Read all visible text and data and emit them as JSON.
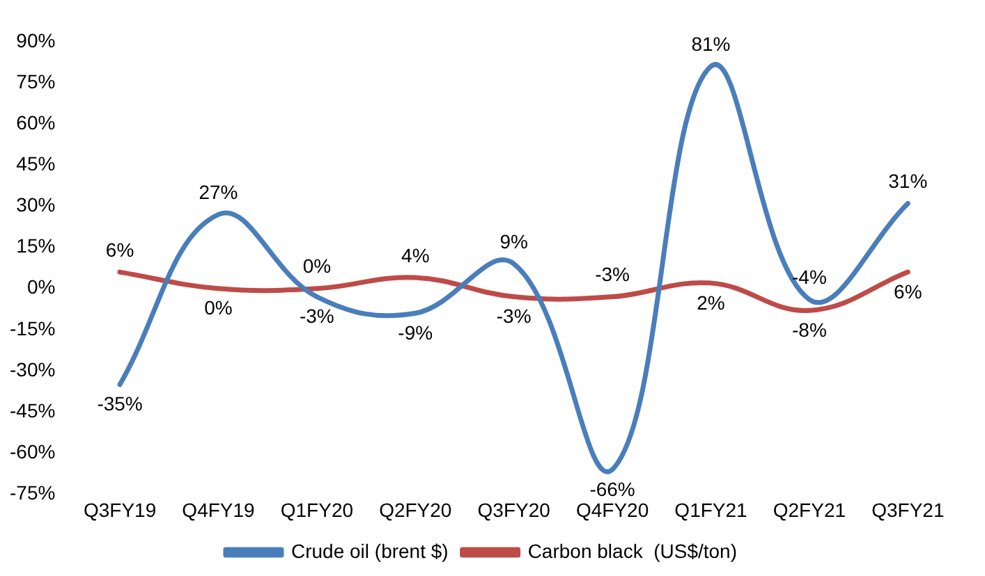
{
  "chart_data": {
    "type": "line",
    "categories": [
      "Q3FY19",
      "Q4FY19",
      "Q1FY20",
      "Q2FY20",
      "Q3FY20",
      "Q4FY20",
      "Q1FY21",
      "Q2FY21",
      "Q3FY21"
    ],
    "series": [
      {
        "name": "Crude oil (brent $)",
        "color": "#4a7ebb",
        "values": [
          -35,
          27,
          -3,
          -9,
          9,
          -66,
          81,
          -4,
          31
        ],
        "value_labels": [
          "-35%",
          "27%",
          "-3%",
          "-9%",
          "9%",
          "-66%",
          "81%",
          "-4%",
          "31%"
        ]
      },
      {
        "name": "Carbon black  (US$/ton)",
        "color": "#be4b48",
        "values": [
          6,
          0,
          0,
          4,
          -3,
          -3,
          2,
          -8,
          6
        ],
        "value_labels": [
          "6%",
          "0%",
          "0%",
          "4%",
          "-3%",
          "-3%",
          "2%",
          "-8%",
          "6%"
        ]
      }
    ],
    "ylim": [
      -75,
      90
    ],
    "yticks": [
      {
        "value": -75,
        "label": "-75%"
      },
      {
        "value": -60,
        "label": "-60%"
      },
      {
        "value": -45,
        "label": "-45%"
      },
      {
        "value": -30,
        "label": "-30%"
      },
      {
        "value": -15,
        "label": "-15%"
      },
      {
        "value": 0,
        "label": "0%"
      },
      {
        "value": 15,
        "label": "15%"
      },
      {
        "value": 30,
        "label": "30%"
      },
      {
        "value": 45,
        "label": "45%"
      },
      {
        "value": 60,
        "label": "60%"
      },
      {
        "value": 75,
        "label": "75%"
      },
      {
        "value": 90,
        "label": "90%"
      }
    ],
    "grid": false,
    "legend": "bottom",
    "marker": "none",
    "line_style": "solid"
  }
}
